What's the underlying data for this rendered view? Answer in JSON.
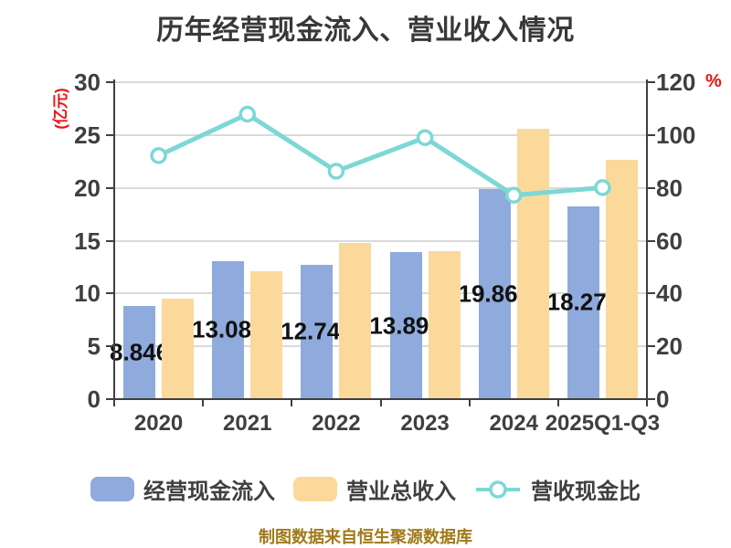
{
  "title": "历年经营现金流入、营业收入情况",
  "footer": "制图数据来自恒生聚源数据库",
  "left_axis": {
    "unit_label": "(亿元)",
    "unit_color": "#ee1111",
    "ticks": [
      0,
      5,
      10,
      15,
      20,
      25,
      30
    ]
  },
  "right_axis": {
    "unit_label": "%",
    "unit_color": "#ee1111",
    "ticks": [
      0,
      20,
      40,
      60,
      80,
      100,
      120
    ]
  },
  "legend": [
    {
      "label": "经营现金流入",
      "type": "bar",
      "color": "#8FAADC"
    },
    {
      "label": "营业总收入",
      "type": "bar",
      "color": "#FBD99A"
    },
    {
      "label": "营收现金比",
      "type": "line",
      "color": "#7DD8D5"
    }
  ],
  "colors": {
    "cash_bar": "#8FAADC",
    "revenue_bar": "#FBD99A",
    "ratio_line": "#7DD8D5",
    "marker_fill": "#ffffff",
    "gridline": "#d9d9d9",
    "axis": "#3f3f3f",
    "bar_label": "#111111",
    "title": "#383838",
    "footer": "#a07a1a"
  },
  "chart_data": {
    "type": "bar",
    "subtype": "grouped bars with overlay line",
    "title": "历年经营现金流入、营业收入情况",
    "categories": [
      "2020",
      "2021",
      "2022",
      "2023",
      "2024",
      "2025Q1-Q3"
    ],
    "series": [
      {
        "name": "经营现金流入",
        "type": "bar",
        "axis": "left",
        "color": "#8FAADC",
        "values": [
          8.846,
          13.081,
          12.745,
          13.891,
          19.868,
          18.271
        ],
        "labels": [
          "8.846",
          "13.081",
          "12.745",
          "13.891",
          "19.868",
          "18.271"
        ]
      },
      {
        "name": "营业总收入",
        "type": "bar",
        "axis": "left",
        "color": "#FBD99A",
        "values": [
          9.55,
          12.14,
          14.82,
          14.04,
          25.62,
          22.66
        ]
      },
      {
        "name": "营收现金比",
        "type": "line",
        "axis": "right",
        "color": "#7DD8D5",
        "values": [
          92.2,
          107.9,
          86.3,
          99.0,
          77.2,
          80.1
        ]
      }
    ],
    "ylabel_left": "(亿元)",
    "ylabel_right": "%",
    "ylim_left": [
      0,
      30
    ],
    "ylim_right": [
      0,
      120
    ],
    "grid": true,
    "legend_position": "bottom"
  }
}
